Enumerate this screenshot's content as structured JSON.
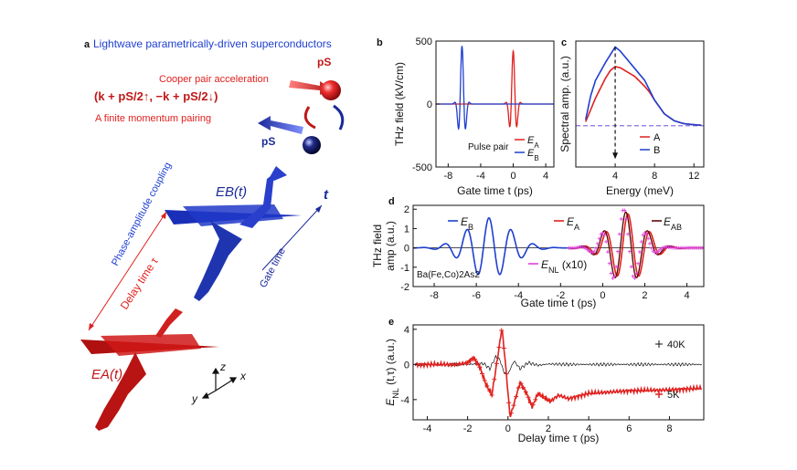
{
  "colors": {
    "red": "#e0201e",
    "blue": "#1f3fd0",
    "dark_blue": "#1a2a9a",
    "dark_red": "#b01818",
    "magenta": "#e040e0",
    "maroon": "#600a0a",
    "black": "#111111",
    "gray": "#555555",
    "purple": "#8a70e8"
  },
  "panel_a": {
    "letter": "a",
    "title": "Lightwave parametrically-driven superconductors",
    "cooper_label": "Cooper pair acceleration",
    "pairing_formula": "(k + pS/2↑, −k + pS/2↓)",
    "finite_label": "A finite momentum pairing",
    "ps_label_top": "pS",
    "ps_label_bottom": "pS",
    "coupling_label": "Phase-amplitude coupling",
    "delay_label": "Delay time τ",
    "gate_label": "Gate time",
    "t_label": "t",
    "eb_label": "EB(t)",
    "ea_label": "EA(t)",
    "axis_z": "z",
    "axis_x": "x",
    "axis_y": "y"
  },
  "chart_data": [
    {
      "id": "b",
      "type": "line",
      "letter": "b",
      "xlabel": "Gate time t (ps)",
      "ylabel": "THz field (kV/cm)",
      "xlim": [
        -9.5,
        5
      ],
      "ylim": [
        -500,
        500
      ],
      "xticks": [
        -8,
        -4,
        0,
        4
      ],
      "yticks": [
        -500,
        0,
        500
      ],
      "annotation": "Pulse pair",
      "legend": {
        "position": "bottom-right",
        "entries": [
          "EA",
          "EB"
        ]
      },
      "series": [
        {
          "name": "EA",
          "pulse": {
            "center": 0.0,
            "amplitude": 420,
            "freq": 1.0,
            "width": 0.35
          }
        },
        {
          "name": "EB",
          "pulse": {
            "center": -6.3,
            "amplitude": 460,
            "freq": 1.0,
            "width": 0.35
          }
        }
      ]
    },
    {
      "id": "c",
      "type": "line",
      "letter": "c",
      "xlabel": "Energy (meV)",
      "ylabel": "Spectral amp. (a.u.)",
      "xlim": [
        0,
        13
      ],
      "xticks": [
        4,
        8,
        12
      ],
      "marker_x": 4,
      "legend": {
        "position": "bottom-right",
        "entries": [
          "A",
          "B"
        ]
      },
      "series": [
        {
          "name": "A",
          "x": [
            1.0,
            1.5,
            2.0,
            3.0,
            3.5,
            4.0,
            4.5,
            5.0,
            6.0,
            7.0,
            7.5,
            8.0,
            9.0,
            10.0,
            11.0,
            12.0,
            12.8
          ],
          "y": [
            0.2,
            0.8,
            1.4,
            2.4,
            2.8,
            3.0,
            2.95,
            2.8,
            2.5,
            2.0,
            1.7,
            1.3,
            0.6,
            0.25,
            0.1,
            0.05,
            0.02
          ]
        },
        {
          "name": "B",
          "x": [
            1.0,
            1.5,
            2.0,
            3.0,
            3.5,
            4.0,
            4.5,
            5.0,
            6.0,
            7.0,
            7.5,
            8.0,
            9.0,
            10.0,
            11.0,
            12.0,
            12.8
          ],
          "y": [
            0.3,
            1.5,
            2.3,
            3.2,
            3.6,
            4.0,
            3.8,
            3.5,
            2.9,
            2.3,
            1.8,
            1.3,
            0.6,
            0.25,
            0.1,
            0.05,
            0.02
          ]
        }
      ]
    },
    {
      "id": "d",
      "type": "line",
      "letter": "d",
      "xlabel": "Gate time t (ps)",
      "ylabel_line1": "THz field",
      "ylabel_line2": "amp (a.u.)",
      "xlim": [
        -9,
        4.8
      ],
      "ylim": [
        -2,
        2.2
      ],
      "xticks": [
        -8,
        -6,
        -4,
        -2,
        0,
        2,
        4
      ],
      "yticks": [
        -2,
        -1,
        0,
        1,
        2
      ],
      "sample_label": "Ba(Fe,Co)2As2",
      "legend": {
        "entries": [
          "EB",
          "EA",
          "EAB",
          "ENL (x10)"
        ]
      },
      "series": [
        {
          "name": "EB",
          "pulse": {
            "center": -5.4,
            "amplitude": 1.55,
            "freq": 0.95,
            "width": 1.05
          }
        },
        {
          "name": "EA",
          "pulse": {
            "center": 1.2,
            "amplitude": 1.75,
            "freq": 0.95,
            "width": 0.85
          }
        },
        {
          "name": "EAB",
          "pulse": {
            "center": 1.1,
            "amplitude": 1.85,
            "freq": 0.95,
            "width": 0.85
          }
        },
        {
          "name": "ENL (x10)",
          "pulse": {
            "center": 1.0,
            "amplitude": 2.0,
            "freq": 0.95,
            "width": 0.75
          }
        }
      ]
    },
    {
      "id": "e",
      "type": "line",
      "letter": "e",
      "xlabel": "Delay time τ (ps)",
      "ylabel": "ENL (t,τ) (a.u.)",
      "xlim": [
        -4.7,
        9.7
      ],
      "ylim": [
        -6.3,
        4.5
      ],
      "xticks": [
        -4,
        -2,
        0,
        2,
        4,
        6,
        8
      ],
      "yticks": [
        -4,
        0,
        4
      ],
      "legend": {
        "entries": [
          "40K",
          "5K"
        ]
      },
      "series": [
        {
          "name": "40K",
          "x": [
            -4.6,
            -2.0,
            -1.2,
            -0.9,
            -0.6,
            -0.4,
            -0.2,
            0.0,
            0.3,
            0.6,
            1.0,
            1.5,
            2.0,
            3.0,
            9.6
          ],
          "y": [
            0.0,
            0.0,
            0.1,
            -0.5,
            0.9,
            0.5,
            -0.9,
            -1.1,
            0.4,
            -0.5,
            0.2,
            -0.1,
            0.05,
            0.0,
            0.0
          ]
        },
        {
          "name": "5K",
          "x": [
            -4.6,
            -2.5,
            -2.0,
            -1.7,
            -1.4,
            -1.1,
            -0.8,
            -0.5,
            -0.3,
            -0.1,
            0.1,
            0.3,
            0.6,
            0.9,
            1.2,
            1.5,
            1.8,
            2.1,
            2.5,
            3.0,
            4.0,
            6.0,
            8.0,
            9.6
          ],
          "y": [
            0.0,
            0.0,
            0.2,
            0.8,
            -0.3,
            -2.2,
            -3.5,
            1.0,
            4.2,
            -0.5,
            -6.0,
            -4.5,
            -2.0,
            -3.2,
            -4.8,
            -3.3,
            -3.8,
            -4.2,
            -3.5,
            -3.9,
            -3.3,
            -3.0,
            -2.9,
            -2.7
          ]
        }
      ]
    }
  ]
}
